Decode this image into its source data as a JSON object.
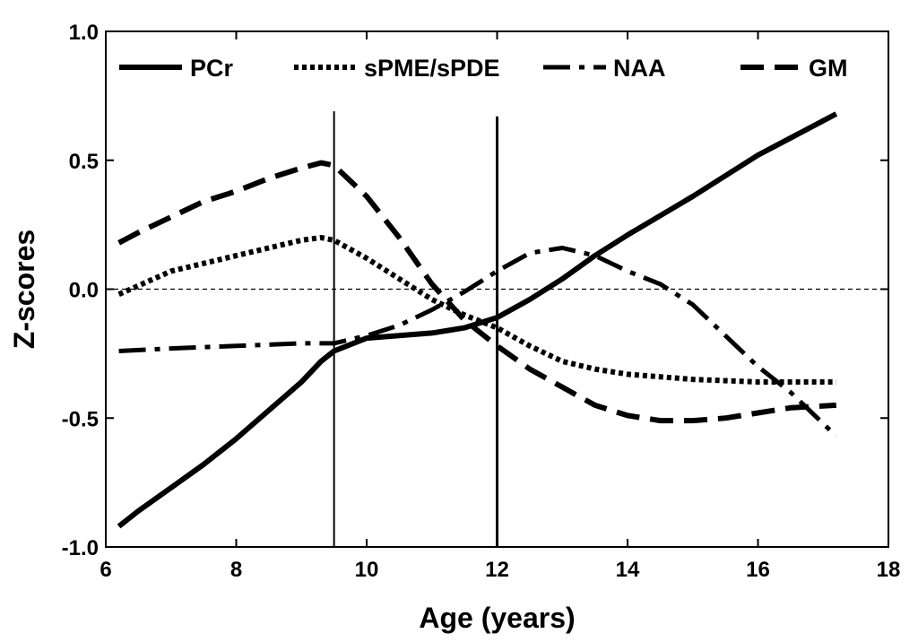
{
  "chart_data": {
    "type": "line",
    "xlabel": "Age (years)",
    "ylabel": "Z-scores",
    "xlim": [
      6,
      18
    ],
    "ylim": [
      -1.0,
      1.0
    ],
    "xticks": [
      6,
      8,
      10,
      12,
      14,
      16,
      18
    ],
    "xtick_labels": [
      "6",
      "8",
      "10",
      "12",
      "14",
      "16",
      "18"
    ],
    "yticks": [
      -1.0,
      -0.5,
      0.0,
      0.5,
      1.0
    ],
    "ytick_labels": [
      "-1.0",
      "-0.5",
      "0.0",
      "0.5",
      "1.0"
    ],
    "reference_line_y": 0.0,
    "vertical_markers": [
      {
        "x": 9.5,
        "y_top": 0.69
      },
      {
        "x": 12.0,
        "y_top": 0.67
      }
    ],
    "legend_position": "top",
    "series": [
      {
        "name": "PCr",
        "style": "solid",
        "x": [
          6.2,
          6.5,
          7.0,
          7.5,
          8.0,
          8.5,
          9.0,
          9.3,
          9.5,
          10.0,
          10.5,
          11.0,
          11.5,
          12.0,
          12.5,
          13.0,
          13.5,
          14.0,
          15.0,
          16.0,
          17.2
        ],
        "y": [
          -0.92,
          -0.86,
          -0.77,
          -0.68,
          -0.58,
          -0.47,
          -0.36,
          -0.28,
          -0.24,
          -0.19,
          -0.18,
          -0.17,
          -0.15,
          -0.11,
          -0.04,
          0.04,
          0.13,
          0.21,
          0.36,
          0.52,
          0.68
        ]
      },
      {
        "name": "sPME/sPDE",
        "style": "dotted",
        "x": [
          6.2,
          7.0,
          8.0,
          9.0,
          9.3,
          9.5,
          10.0,
          10.5,
          11.0,
          11.5,
          12.0,
          12.5,
          13.0,
          13.5,
          14.0,
          15.0,
          16.0,
          17.2
        ],
        "y": [
          -0.02,
          0.07,
          0.13,
          0.19,
          0.2,
          0.19,
          0.12,
          0.04,
          -0.04,
          -0.1,
          -0.15,
          -0.22,
          -0.28,
          -0.31,
          -0.33,
          -0.35,
          -0.36,
          -0.36
        ]
      },
      {
        "name": "NAA",
        "style": "dash-dot",
        "x": [
          6.2,
          7.0,
          8.0,
          9.0,
          9.5,
          10.0,
          10.5,
          11.0,
          11.5,
          12.0,
          12.5,
          13.0,
          13.5,
          14.0,
          14.5,
          15.0,
          15.5,
          16.0,
          16.5,
          17.2
        ],
        "y": [
          -0.24,
          -0.23,
          -0.22,
          -0.21,
          -0.21,
          -0.18,
          -0.14,
          -0.08,
          -0.01,
          0.07,
          0.14,
          0.16,
          0.13,
          0.07,
          0.02,
          -0.06,
          -0.18,
          -0.3,
          -0.4,
          -0.57
        ]
      },
      {
        "name": "GM",
        "style": "dashed",
        "x": [
          6.2,
          6.5,
          7.0,
          7.5,
          8.0,
          8.5,
          9.0,
          9.3,
          9.5,
          10.0,
          10.5,
          11.0,
          11.5,
          12.0,
          12.5,
          13.0,
          13.5,
          14.0,
          14.5,
          15.0,
          15.5,
          16.0,
          16.5,
          17.2
        ],
        "y": [
          0.18,
          0.22,
          0.28,
          0.34,
          0.38,
          0.43,
          0.47,
          0.49,
          0.48,
          0.36,
          0.2,
          0.02,
          -0.12,
          -0.22,
          -0.31,
          -0.38,
          -0.45,
          -0.49,
          -0.51,
          -0.51,
          -0.5,
          -0.48,
          -0.46,
          -0.45
        ]
      }
    ]
  }
}
